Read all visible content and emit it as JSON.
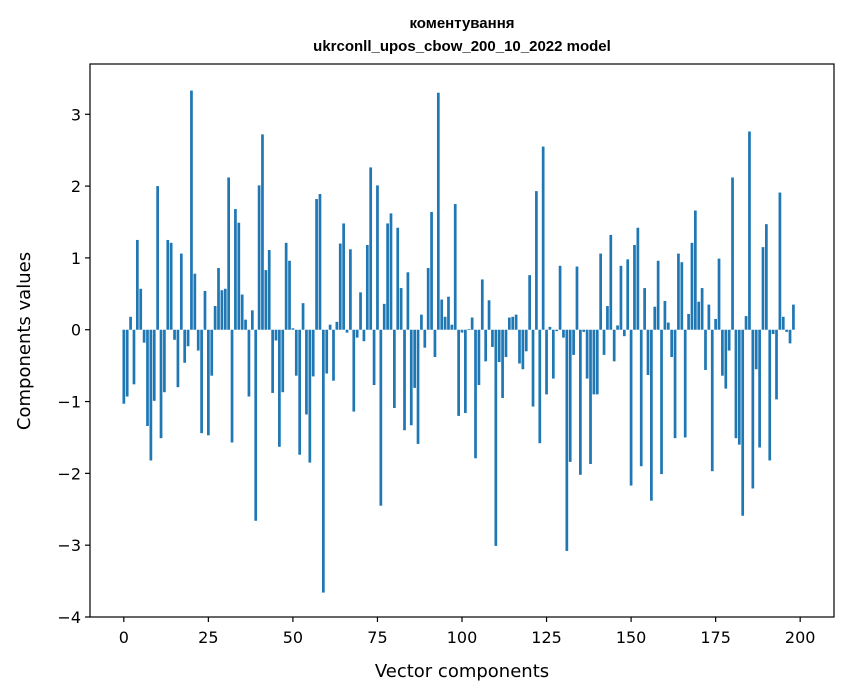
{
  "chart_data": {
    "type": "bar",
    "title_line1": "коментування",
    "title_line2": "ukrconll_upos_cbow_200_10_2022 model",
    "xlabel": "Vector components",
    "ylabel": "Components values",
    "xlim": [
      -10,
      210
    ],
    "ylim": [
      -4.0,
      3.7
    ],
    "xticks": [
      0,
      25,
      50,
      75,
      100,
      125,
      150,
      175,
      200
    ],
    "yticks": [
      -4,
      -3,
      -2,
      -1,
      0,
      1,
      2,
      3
    ],
    "ytick_labels": [
      "−4",
      "−3",
      "−2",
      "−1",
      "0",
      "1",
      "2",
      "3"
    ],
    "bar_color": "#1f77b4",
    "values": [
      -1.03,
      -0.93,
      0.18,
      -0.76,
      1.25,
      0.57,
      -0.18,
      -1.34,
      -1.82,
      -0.99,
      2.0,
      -1.51,
      -0.87,
      1.25,
      1.21,
      -0.14,
      -0.8,
      1.06,
      -0.46,
      -0.23,
      3.33,
      0.78,
      -0.29,
      -1.44,
      0.54,
      -1.47,
      -0.64,
      0.33,
      0.86,
      0.55,
      0.57,
      2.12,
      -1.57,
      1.68,
      1.49,
      0.49,
      0.14,
      -0.93,
      0.27,
      -2.66,
      2.01,
      2.72,
      0.83,
      1.11,
      -0.88,
      -0.15,
      -1.63,
      -0.87,
      1.21,
      0.96,
      0.02,
      -0.64,
      -1.74,
      0.37,
      -1.18,
      -1.85,
      -0.65,
      1.82,
      1.89,
      -3.66,
      -0.61,
      0.07,
      -0.71,
      0.11,
      1.2,
      1.48,
      -0.04,
      1.12,
      -1.14,
      -0.11,
      0.52,
      -0.16,
      1.18,
      2.26,
      -0.77,
      2.01,
      -2.45,
      0.36,
      1.48,
      1.62,
      -1.09,
      1.42,
      0.58,
      -1.4,
      0.8,
      -1.33,
      -0.81,
      -1.59,
      0.21,
      -0.25,
      0.86,
      1.64,
      -0.38,
      3.3,
      0.42,
      0.18,
      0.46,
      0.07,
      1.75,
      -1.2,
      -0.04,
      -1.16,
      0.01,
      0.17,
      -1.79,
      -0.77,
      0.7,
      -0.44,
      0.41,
      -0.24,
      -3.01,
      -0.45,
      -0.95,
      -0.38,
      0.17,
      0.18,
      0.21,
      -0.47,
      -0.55,
      -0.3,
      0.76,
      -1.07,
      1.93,
      -1.58,
      2.55,
      -0.9,
      0.04,
      -0.68,
      -0.02,
      0.89,
      -0.11,
      -3.08,
      -1.84,
      -0.35,
      0.88,
      -2.02,
      -0.03,
      -0.68,
      -1.87,
      -0.9,
      -0.9,
      1.06,
      -0.35,
      0.33,
      1.32,
      -0.44,
      0.06,
      0.89,
      -0.09,
      0.98,
      -2.17,
      1.18,
      1.42,
      -1.9,
      0.58,
      -0.63,
      -2.38,
      0.32,
      0.96,
      -2.01,
      0.4,
      0.1,
      -0.38,
      -1.51,
      1.06,
      0.94,
      -1.5,
      0.22,
      1.21,
      1.66,
      0.39,
      0.58,
      -0.56,
      0.35,
      -1.97,
      0.15,
      0.99,
      -0.64,
      -0.82,
      -0.29,
      2.12,
      -1.51,
      -1.6,
      -2.59,
      0.19,
      2.76,
      -2.21,
      -0.55,
      -1.64,
      1.15,
      1.47,
      -1.82,
      -0.06,
      -0.97,
      1.91,
      0.18,
      -0.03,
      -0.19,
      0.35
    ]
  }
}
